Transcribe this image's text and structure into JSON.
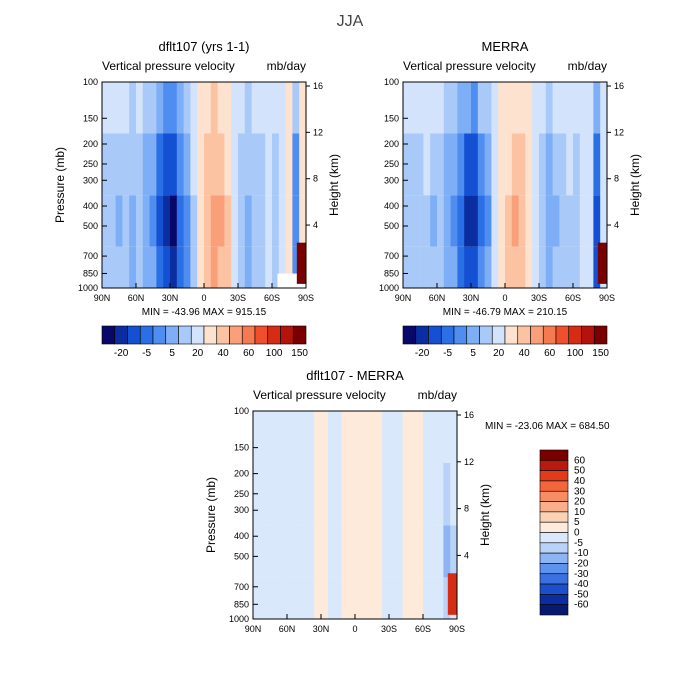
{
  "figure": {
    "title": "JJA"
  },
  "chart_data": [
    {
      "type": "heatmap",
      "title": "dflt107 (yrs 1-1)",
      "subtitle_left": "Vertical pressure velocity",
      "subtitle_right": "mb/day",
      "ylabel": "Pressure (mb)",
      "y2label": "Height (km)",
      "x_ticks": [
        "90N",
        "60N",
        "30N",
        "0",
        "30S",
        "60S",
        "90S"
      ],
      "y_ticks": [
        "100",
        "150",
        "200",
        "250",
        "300",
        "400",
        "500",
        "700",
        "850",
        "1000"
      ],
      "y2_ticks": [
        "16",
        "12",
        "8",
        "4"
      ],
      "stats": "MIN = -43.96   MAX = 915.15",
      "colorbar_labels": [
        "-20",
        "-5",
        "5",
        "20",
        "40",
        "60",
        "100",
        "150"
      ],
      "colorbar_colors": [
        "#08086b",
        "#0a2da0",
        "#1450d2",
        "#2b6fe6",
        "#4f8df0",
        "#7eaef5",
        "#a9c9f8",
        "#d2e3fb",
        "#fde3cf",
        "#fcc3a3",
        "#f9a07a",
        "#f57a52",
        "#ef4f2c",
        "#d72c14",
        "#b3130a",
        "#7a0000"
      ],
      "columns": [
        {
          "lat": -90,
          "v": -10
        },
        {
          "lat": -80,
          "v": -8
        },
        {
          "lat": -72,
          "v": -11
        },
        {
          "lat": -62,
          "v": -7
        },
        {
          "lat": -54,
          "v": -12
        },
        {
          "lat": -44,
          "v": -9
        },
        {
          "lat": -36,
          "v": -14
        },
        {
          "lat": -28,
          "v": -17
        },
        {
          "lat": -21,
          "v": -26
        },
        {
          "lat": -16,
          "v": -34
        },
        {
          "lat": -12,
          "v": -36
        },
        {
          "lat": -8,
          "v": -24
        },
        {
          "lat": -4,
          "v": -18
        },
        {
          "lat": 0,
          "v": -6
        },
        {
          "lat": 4,
          "v": 2
        },
        {
          "lat": 8,
          "v": 8
        },
        {
          "lat": 12,
          "v": 12
        },
        {
          "lat": 18,
          "v": 10
        },
        {
          "lat": 24,
          "v": 6
        },
        {
          "lat": 30,
          "v": -2
        },
        {
          "lat": 36,
          "v": -8
        },
        {
          "lat": 42,
          "v": -12
        },
        {
          "lat": 48,
          "v": -10
        },
        {
          "lat": 54,
          "v": -8
        },
        {
          "lat": 60,
          "v": -5
        },
        {
          "lat": 66,
          "v": -7
        },
        {
          "lat": 72,
          "v": -3
        },
        {
          "lat": 78,
          "v": 0
        },
        {
          "lat": 84,
          "v": -20
        },
        {
          "lat": 90,
          "v": 0
        }
      ],
      "surface_anomaly": "high positive values near 85S-90S below 700 mb"
    },
    {
      "type": "heatmap",
      "title": "MERRA",
      "subtitle_left": "Vertical pressure velocity",
      "subtitle_right": "mb/day",
      "ylabel": "",
      "y2label": "Height (km)",
      "x_ticks": [
        "90N",
        "60N",
        "30N",
        "0",
        "30S",
        "60S",
        "90S"
      ],
      "y_ticks": [
        "100",
        "150",
        "200",
        "250",
        "300",
        "400",
        "500",
        "700",
        "850",
        "1000"
      ],
      "y2_ticks": [
        "16",
        "12",
        "8",
        "4"
      ],
      "stats": "MIN = -46.79   MAX = 210.15",
      "colorbar_labels": [
        "-20",
        "-5",
        "5",
        "20",
        "40",
        "60",
        "100",
        "150"
      ],
      "colorbar_colors": [
        "#08086b",
        "#0a2da0",
        "#1450d2",
        "#2b6fe6",
        "#4f8df0",
        "#7eaef5",
        "#a9c9f8",
        "#d2e3fb",
        "#fde3cf",
        "#fcc3a3",
        "#f9a07a",
        "#f57a52",
        "#ef4f2c",
        "#d72c14",
        "#b3130a",
        "#7a0000"
      ],
      "columns": [
        {
          "lat": -90,
          "v": -9
        },
        {
          "lat": -80,
          "v": -7
        },
        {
          "lat": -72,
          "v": -10
        },
        {
          "lat": -62,
          "v": -6
        },
        {
          "lat": -54,
          "v": -11
        },
        {
          "lat": -44,
          "v": -8
        },
        {
          "lat": -36,
          "v": -13
        },
        {
          "lat": -28,
          "v": -16
        },
        {
          "lat": -21,
          "v": -24
        },
        {
          "lat": -16,
          "v": -32
        },
        {
          "lat": -12,
          "v": -35
        },
        {
          "lat": -8,
          "v": -22
        },
        {
          "lat": -4,
          "v": -16
        },
        {
          "lat": 0,
          "v": -5
        },
        {
          "lat": 4,
          "v": 1
        },
        {
          "lat": 8,
          "v": 6
        },
        {
          "lat": 12,
          "v": 10
        },
        {
          "lat": 18,
          "v": 8
        },
        {
          "lat": 24,
          "v": 4
        },
        {
          "lat": 30,
          "v": -3
        },
        {
          "lat": 36,
          "v": -9
        },
        {
          "lat": 42,
          "v": -13
        },
        {
          "lat": 48,
          "v": -11
        },
        {
          "lat": 54,
          "v": -9
        },
        {
          "lat": 60,
          "v": -6
        },
        {
          "lat": 66,
          "v": -8
        },
        {
          "lat": 72,
          "v": -4
        },
        {
          "lat": 78,
          "v": -2
        },
        {
          "lat": 84,
          "v": -30
        },
        {
          "lat": 90,
          "v": -5
        }
      ]
    },
    {
      "type": "heatmap",
      "title": "dflt107 - MERRA",
      "subtitle_left": "Vertical pressure velocity",
      "subtitle_right": "mb/day",
      "ylabel": "Pressure (mb)",
      "y2label": "Height (km)",
      "x_ticks": [
        "90N",
        "60N",
        "30N",
        "0",
        "30S",
        "60S",
        "90S"
      ],
      "y_ticks": [
        "100",
        "150",
        "200",
        "250",
        "300",
        "400",
        "500",
        "700",
        "850",
        "1000"
      ],
      "y2_ticks": [
        "16",
        "12",
        "8",
        "4"
      ],
      "stats": "MIN = -23.06   MAX = 684.50",
      "colorbar_labels": [
        "60",
        "50",
        "40",
        "30",
        "20",
        "10",
        "5",
        "0",
        "-5",
        "-10",
        "-20",
        "-30",
        "-40",
        "-50",
        "-60"
      ],
      "colorbar_colors": [
        "#7a0000",
        "#b81a0e",
        "#e23b1c",
        "#f3653d",
        "#f78d63",
        "#f9b08a",
        "#fcd2b4",
        "#fdeadb",
        "#d9e8fb",
        "#b8d2f8",
        "#8db5f3",
        "#5f92ec",
        "#3a70e0",
        "#1d4ecb",
        "#0d2d9e",
        "#081a70"
      ],
      "columns": [
        {
          "lat": -90,
          "v": 1
        },
        {
          "lat": -80,
          "v": 2
        },
        {
          "lat": -72,
          "v": 1
        },
        {
          "lat": -62,
          "v": 2
        },
        {
          "lat": -54,
          "v": 1
        },
        {
          "lat": -44,
          "v": 2
        },
        {
          "lat": -36,
          "v": 1
        },
        {
          "lat": -28,
          "v": 2
        },
        {
          "lat": -21,
          "v": 1
        },
        {
          "lat": -16,
          "v": -1
        },
        {
          "lat": -12,
          "v": -1
        },
        {
          "lat": -8,
          "v": 3
        },
        {
          "lat": -4,
          "v": 2
        },
        {
          "lat": 0,
          "v": -1
        },
        {
          "lat": 4,
          "v": -2
        },
        {
          "lat": 8,
          "v": -1
        },
        {
          "lat": 12,
          "v": -2
        },
        {
          "lat": 18,
          "v": -1
        },
        {
          "lat": 24,
          "v": -2
        },
        {
          "lat": 30,
          "v": 2
        },
        {
          "lat": 36,
          "v": 3
        },
        {
          "lat": 42,
          "v": 2
        },
        {
          "lat": 48,
          "v": -1
        },
        {
          "lat": 54,
          "v": -2
        },
        {
          "lat": 60,
          "v": -1
        },
        {
          "lat": 66,
          "v": 2
        },
        {
          "lat": 72,
          "v": 1
        },
        {
          "lat": 78,
          "v": 2
        },
        {
          "lat": 84,
          "v": 10
        },
        {
          "lat": 90,
          "v": 5
        }
      ]
    }
  ]
}
